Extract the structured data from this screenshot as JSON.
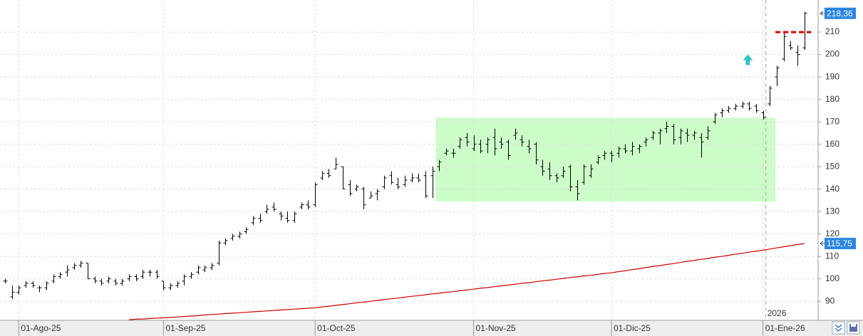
{
  "chart_data": {
    "type": "ohlc",
    "categories": [
      null,
      null,
      "01-Ago-25",
      null,
      null,
      null,
      null,
      null,
      null,
      null,
      null,
      null,
      null,
      null,
      null,
      null,
      null,
      null,
      null,
      null,
      null,
      null,
      null,
      "01-Sep-25",
      null,
      null,
      null,
      null,
      null,
      null,
      null,
      null,
      null,
      null,
      null,
      null,
      null,
      null,
      null,
      null,
      null,
      null,
      null,
      null,
      null,
      "01-Oct-25",
      null,
      null,
      null,
      null,
      null,
      null,
      null,
      null,
      null,
      null,
      null,
      null,
      null,
      null,
      null,
      null,
      null,
      null,
      null,
      null,
      null,
      null,
      "01-Nov-25",
      null,
      null,
      null,
      null,
      null,
      null,
      null,
      null,
      null,
      null,
      null,
      null,
      null,
      null,
      null,
      null,
      null,
      null,
      null,
      "01-Dic-25",
      null,
      null,
      null,
      null,
      null,
      null,
      null,
      null,
      null,
      null,
      null,
      null,
      null,
      null,
      null,
      null,
      null,
      null,
      null,
      null,
      null,
      "01-Ene-26",
      null,
      null,
      null,
      null,
      null,
      null
    ],
    "ohlc": {
      "color": "#000000",
      "open": [
        99,
        92,
        94,
        97,
        98,
        96,
        96,
        99,
        101,
        103,
        105,
        106,
        107,
        100,
        99,
        99,
        99,
        98,
        100,
        101,
        101,
        103,
        103,
        99,
        96,
        97,
        99,
        101,
        103,
        104,
        105,
        107,
        116,
        118,
        119,
        121,
        125,
        127,
        130,
        132,
        129,
        127,
        126,
        132,
        133,
        133,
        145,
        147,
        149,
        150,
        142,
        140,
        140,
        136,
        138,
        141,
        146,
        142,
        142,
        144,
        145,
        146,
        146,
        150,
        156,
        156,
        159,
        163,
        158,
        160,
        160,
        163,
        161,
        161,
        164,
        162,
        159,
        160,
        150,
        149,
        146,
        146,
        150,
        141,
        143,
        146,
        152,
        155,
        156,
        156,
        158,
        157,
        158,
        161,
        163,
        165,
        167,
        168,
        163,
        165,
        164,
        163,
        163,
        170,
        174,
        175,
        176,
        177,
        178,
        177,
        174,
        178,
        190,
        198,
        204,
        201,
        203
      ],
      "high": [
        100,
        97,
        97,
        99,
        99,
        97,
        99,
        102,
        103,
        106,
        107,
        108,
        107,
        101,
        100,
        101,
        100,
        100,
        102,
        102,
        104,
        104,
        104,
        99,
        98,
        99,
        102,
        103,
        106,
        106,
        107,
        117,
        118,
        120,
        121,
        123,
        128,
        129,
        133,
        134,
        130,
        130,
        130,
        134,
        135,
        143,
        148,
        149,
        154,
        150,
        144,
        142,
        141,
        139,
        140,
        146,
        148,
        145,
        146,
        147,
        147,
        148,
        150,
        153,
        158,
        158,
        163,
        165,
        164,
        162,
        163,
        167,
        163,
        162,
        167,
        164,
        162,
        161,
        153,
        152,
        147,
        150,
        151,
        144,
        151,
        151,
        155,
        157,
        157,
        159,
        160,
        161,
        160,
        163,
        166,
        167,
        170,
        169,
        167,
        167,
        166,
        165,
        168,
        174,
        176,
        177,
        178,
        179,
        179,
        178,
        175,
        186,
        195,
        210,
        206,
        204,
        219
      ],
      "low": [
        98,
        91,
        93,
        96,
        96,
        94,
        95,
        98,
        100,
        101,
        104,
        105,
        100,
        98,
        97,
        98,
        97,
        97,
        99,
        99,
        100,
        101,
        100,
        95,
        95,
        96,
        97,
        100,
        102,
        103,
        104,
        106,
        115,
        117,
        118,
        120,
        124,
        125,
        129,
        130,
        126,
        125,
        125,
        131,
        131,
        132,
        144,
        145,
        149,
        140,
        137,
        139,
        131,
        136,
        135,
        140,
        142,
        140,
        141,
        143,
        143,
        136,
        136,
        148,
        155,
        154,
        158,
        159,
        157,
        156,
        156,
        155,
        158,
        153,
        162,
        159,
        156,
        151,
        146,
        144,
        143,
        145,
        139,
        135,
        142,
        145,
        151,
        153,
        152,
        154,
        156,
        155,
        156,
        159,
        162,
        160,
        165,
        160,
        160,
        161,
        162,
        154,
        162,
        169,
        172,
        174,
        175,
        176,
        175,
        174,
        171,
        177,
        186,
        197,
        202,
        195,
        202
      ],
      "close": [
        99,
        94,
        96,
        98,
        97,
        96,
        98,
        101,
        102,
        104,
        106,
        107,
        100,
        99,
        98,
        100,
        98,
        99,
        101,
        100,
        103,
        103,
        101,
        96,
        97,
        98,
        101,
        102,
        105,
        105,
        106,
        116,
        117,
        119,
        120,
        122,
        127,
        126,
        131,
        131,
        128,
        126,
        129,
        133,
        132,
        142,
        147,
        146,
        151,
        140,
        138,
        141,
        133,
        137,
        139,
        145,
        143,
        141,
        144,
        145,
        144,
        137,
        148,
        152,
        157,
        156,
        162,
        161,
        160,
        157,
        162,
        158,
        160,
        155,
        165,
        161,
        158,
        153,
        148,
        146,
        145,
        148,
        141,
        138,
        150,
        149,
        154,
        156,
        155,
        158,
        157,
        159,
        159,
        162,
        165,
        166,
        168,
        162,
        166,
        164,
        165,
        161,
        166,
        173,
        175,
        176,
        177,
        178,
        176,
        175,
        172,
        185,
        194,
        208,
        203,
        200,
        218.36
      ],
      "last_label": "218,36"
    },
    "ma": {
      "color": "#cc0000",
      "values": [
        null,
        null,
        null,
        null,
        null,
        null,
        null,
        null,
        null,
        null,
        null,
        null,
        null,
        null,
        null,
        null,
        null,
        null,
        81.8,
        82.0,
        82.1,
        82.3,
        82.5,
        82.6,
        82.8,
        83.0,
        83.2,
        83.4,
        83.6,
        83.9,
        84.1,
        84.3,
        84.5,
        84.7,
        84.9,
        85.1,
        85.3,
        85.5,
        85.7,
        85.9,
        86.1,
        86.3,
        86.5,
        86.7,
        86.9,
        87.1,
        87.5,
        87.8,
        88.2,
        88.5,
        88.9,
        89.3,
        89.6,
        90.0,
        90.4,
        90.7,
        91.1,
        91.4,
        91.8,
        92.2,
        92.5,
        92.9,
        93.3,
        93.6,
        94.0,
        94.3,
        94.7,
        95.0,
        95.4,
        95.8,
        96.1,
        96.5,
        96.9,
        97.2,
        97.6,
        98.0,
        98.3,
        98.7,
        99.1,
        99.4,
        99.8,
        100.2,
        100.6,
        100.9,
        101.3,
        101.6,
        102.0,
        102.4,
        102.7,
        103.2,
        103.6,
        104.1,
        104.5,
        105.0,
        105.5,
        105.9,
        106.4,
        106.8,
        107.3,
        107.8,
        108.2,
        108.7,
        109.1,
        109.6,
        110.0,
        110.5,
        111.0,
        111.4,
        111.9,
        112.3,
        112.8,
        113.3,
        113.8,
        114.3,
        114.8,
        115.3,
        115.75
      ],
      "last_label": "115,75"
    },
    "zone": {
      "from": 62.5,
      "to": 111.8,
      "low": 134.5,
      "high": 171.8,
      "color": "#ccfcc8"
    },
    "level": {
      "value": 210,
      "from": 111.8,
      "to": 117,
      "color": "#dd0000"
    },
    "arrow": {
      "index": 108,
      "value": 197.5,
      "color": "#33c4c4"
    },
    "year_start": {
      "index": 110,
      "label": "2026"
    },
    "ylim": [
      81.5,
      224.3
    ],
    "yticks": [
      90,
      100,
      110,
      120,
      130,
      140,
      150,
      160,
      170,
      180,
      190,
      200,
      210
    ],
    "grid": true,
    "label_color": "#2a86e0"
  }
}
